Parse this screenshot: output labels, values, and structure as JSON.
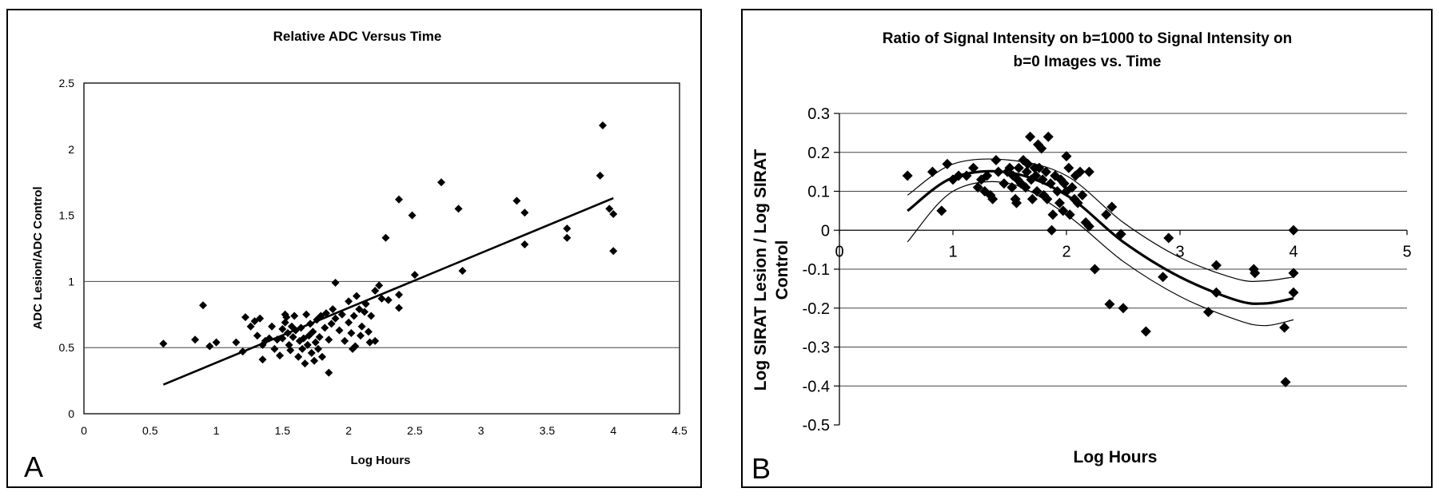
{
  "chart_data": [
    {
      "type": "scatter",
      "panel_label": "A",
      "title": "Relative ADC Versus Time",
      "xlabel": "Log Hours",
      "ylabel": "ADC Lesion/ADC Control",
      "xlim": [
        0,
        4.5
      ],
      "ylim": [
        0,
        2.5
      ],
      "xticks": [
        "0",
        "0.5",
        "1",
        "1.5",
        "2",
        "2.5",
        "3",
        "3.5",
        "4",
        "4.5"
      ],
      "yticks": [
        "0",
        "0.5",
        "1",
        "1.5",
        "2",
        "2.5"
      ],
      "grid": "horizontal lines at 0.5 and 1",
      "legend": "none",
      "trend_line": {
        "x": [
          0.6,
          4.0
        ],
        "y": [
          0.22,
          1.63
        ]
      },
      "points": [
        [
          0.6,
          0.53
        ],
        [
          0.84,
          0.56
        ],
        [
          0.9,
          0.82
        ],
        [
          0.95,
          0.51
        ],
        [
          1.0,
          0.54
        ],
        [
          1.15,
          0.54
        ],
        [
          1.2,
          0.47
        ],
        [
          1.22,
          0.73
        ],
        [
          1.26,
          0.66
        ],
        [
          1.29,
          0.7
        ],
        [
          1.31,
          0.59
        ],
        [
          1.33,
          0.72
        ],
        [
          1.35,
          0.52
        ],
        [
          1.35,
          0.41
        ],
        [
          1.37,
          0.55
        ],
        [
          1.4,
          0.57
        ],
        [
          1.42,
          0.66
        ],
        [
          1.44,
          0.49
        ],
        [
          1.46,
          0.56
        ],
        [
          1.48,
          0.44
        ],
        [
          1.5,
          0.57
        ],
        [
          1.5,
          0.64
        ],
        [
          1.52,
          0.69
        ],
        [
          1.52,
          0.75
        ],
        [
          1.53,
          0.73
        ],
        [
          1.54,
          0.61
        ],
        [
          1.55,
          0.52
        ],
        [
          1.56,
          0.48
        ],
        [
          1.57,
          0.66
        ],
        [
          1.58,
          0.58
        ],
        [
          1.59,
          0.74
        ],
        [
          1.6,
          0.63
        ],
        [
          1.62,
          0.43
        ],
        [
          1.63,
          0.55
        ],
        [
          1.64,
          0.65
        ],
        [
          1.65,
          0.49
        ],
        [
          1.66,
          0.57
        ],
        [
          1.67,
          0.38
        ],
        [
          1.68,
          0.75
        ],
        [
          1.69,
          0.52
        ],
        [
          1.7,
          0.59
        ],
        [
          1.71,
          0.68
        ],
        [
          1.72,
          0.46
        ],
        [
          1.73,
          0.62
        ],
        [
          1.74,
          0.4
        ],
        [
          1.75,
          0.54
        ],
        [
          1.76,
          0.71
        ],
        [
          1.77,
          0.49
        ],
        [
          1.78,
          0.58
        ],
        [
          1.79,
          0.74
        ],
        [
          1.8,
          0.43
        ],
        [
          1.82,
          0.65
        ],
        [
          1.83,
          0.76
        ],
        [
          1.85,
          0.56
        ],
        [
          1.85,
          0.31
        ],
        [
          1.87,
          0.68
        ],
        [
          1.88,
          0.79
        ],
        [
          1.9,
          0.99
        ],
        [
          1.9,
          0.72
        ],
        [
          1.93,
          0.63
        ],
        [
          1.95,
          0.75
        ],
        [
          1.97,
          0.55
        ],
        [
          2.0,
          0.85
        ],
        [
          2.0,
          0.69
        ],
        [
          2.02,
          0.61
        ],
        [
          2.03,
          0.49
        ],
        [
          2.04,
          0.74
        ],
        [
          2.05,
          0.51
        ],
        [
          2.06,
          0.89
        ],
        [
          2.08,
          0.79
        ],
        [
          2.09,
          0.59
        ],
        [
          2.1,
          0.66
        ],
        [
          2.12,
          0.77
        ],
        [
          2.13,
          0.83
        ],
        [
          2.15,
          0.62
        ],
        [
          2.16,
          0.54
        ],
        [
          2.17,
          0.74
        ],
        [
          2.2,
          0.93
        ],
        [
          2.2,
          0.55
        ],
        [
          2.23,
          0.97
        ],
        [
          2.25,
          0.87
        ],
        [
          2.28,
          1.33
        ],
        [
          2.3,
          0.86
        ],
        [
          2.38,
          0.9
        ],
        [
          2.38,
          0.8
        ],
        [
          2.38,
          1.62
        ],
        [
          2.48,
          1.5
        ],
        [
          2.5,
          1.05
        ],
        [
          2.7,
          1.75
        ],
        [
          2.83,
          1.55
        ],
        [
          2.86,
          1.08
        ],
        [
          3.27,
          1.61
        ],
        [
          3.33,
          1.52
        ],
        [
          3.33,
          1.28
        ],
        [
          3.65,
          1.4
        ],
        [
          3.65,
          1.33
        ],
        [
          3.9,
          1.8
        ],
        [
          3.92,
          2.18
        ],
        [
          3.97,
          1.55
        ],
        [
          4.0,
          1.51
        ],
        [
          4.0,
          1.23
        ]
      ]
    },
    {
      "type": "scatter",
      "panel_label": "B",
      "title": "Ratio of Signal Intensity on b=1000 to Signal Intensity on",
      "title_line2": "b=0 Images vs. Time",
      "xlabel": "Log Hours",
      "ylabel": "Log SIRAT Lesion / Log SIRAT",
      "ylabel_line2": "Control",
      "xlim": [
        0,
        5
      ],
      "ylim": [
        -0.5,
        0.3
      ],
      "xticks": [
        "0",
        "1",
        "2",
        "3",
        "4",
        "5"
      ],
      "yticks": [
        "0.3",
        "0.2",
        "0.1",
        "0",
        "-0.1",
        "-0.2",
        "-0.3",
        "-0.4",
        "-0.5"
      ],
      "grid": "horizontal lines at every 0.1",
      "legend": "none",
      "fit_curve": {
        "x": [
          0.6,
          1.0,
          1.5,
          2.0,
          2.5,
          3.0,
          3.5,
          3.75,
          4.0
        ],
        "y": [
          0.05,
          0.135,
          0.148,
          0.09,
          -0.03,
          -0.12,
          -0.18,
          -0.188,
          -0.175
        ]
      },
      "upper_band": {
        "x": [
          0.6,
          1.0,
          1.5,
          2.0,
          2.5,
          3.0,
          3.5,
          3.75,
          4.0
        ],
        "y": [
          0.09,
          0.17,
          0.18,
          0.14,
          0.02,
          -0.07,
          -0.125,
          -0.13,
          -0.12
        ]
      },
      "lower_band": {
        "x": [
          0.6,
          1.0,
          1.5,
          2.0,
          2.5,
          3.0,
          3.5,
          3.75,
          4.0
        ],
        "y": [
          -0.03,
          0.1,
          0.12,
          0.04,
          -0.08,
          -0.17,
          -0.23,
          -0.245,
          -0.23
        ]
      },
      "points": [
        [
          0.6,
          0.14
        ],
        [
          0.82,
          0.15
        ],
        [
          0.9,
          0.05
        ],
        [
          0.95,
          0.17
        ],
        [
          1.0,
          0.13
        ],
        [
          1.05,
          0.14
        ],
        [
          1.12,
          0.14
        ],
        [
          1.18,
          0.16
        ],
        [
          1.22,
          0.11
        ],
        [
          1.25,
          0.13
        ],
        [
          1.28,
          0.1
        ],
        [
          1.3,
          0.14
        ],
        [
          1.33,
          0.09
        ],
        [
          1.35,
          0.08
        ],
        [
          1.38,
          0.18
        ],
        [
          1.4,
          0.15
        ],
        [
          1.45,
          0.12
        ],
        [
          1.48,
          0.15
        ],
        [
          1.5,
          0.16
        ],
        [
          1.52,
          0.11
        ],
        [
          1.53,
          0.14
        ],
        [
          1.55,
          0.08
        ],
        [
          1.56,
          0.07
        ],
        [
          1.57,
          0.13
        ],
        [
          1.58,
          0.16
        ],
        [
          1.6,
          0.12
        ],
        [
          1.62,
          0.18
        ],
        [
          1.64,
          0.11
        ],
        [
          1.65,
          0.15
        ],
        [
          1.66,
          0.17
        ],
        [
          1.68,
          0.24
        ],
        [
          1.69,
          0.13
        ],
        [
          1.7,
          0.08
        ],
        [
          1.72,
          0.16
        ],
        [
          1.73,
          0.14
        ],
        [
          1.74,
          0.1
        ],
        [
          1.75,
          0.22
        ],
        [
          1.76,
          0.16
        ],
        [
          1.78,
          0.21
        ],
        [
          1.79,
          0.13
        ],
        [
          1.8,
          0.09
        ],
        [
          1.82,
          0.15
        ],
        [
          1.83,
          0.08
        ],
        [
          1.84,
          0.24
        ],
        [
          1.86,
          0.12
        ],
        [
          1.87,
          0.0
        ],
        [
          1.88,
          0.04
        ],
        [
          1.9,
          0.14
        ],
        [
          1.92,
          0.1
        ],
        [
          1.94,
          0.07
        ],
        [
          1.95,
          0.13
        ],
        [
          1.97,
          0.05
        ],
        [
          1.98,
          0.12
        ],
        [
          2.0,
          0.19
        ],
        [
          2.0,
          0.1
        ],
        [
          2.02,
          0.16
        ],
        [
          2.03,
          0.04
        ],
        [
          2.05,
          0.11
        ],
        [
          2.07,
          0.08
        ],
        [
          2.08,
          0.14
        ],
        [
          2.1,
          0.07
        ],
        [
          2.12,
          0.15
        ],
        [
          2.14,
          0.09
        ],
        [
          2.17,
          0.02
        ],
        [
          2.2,
          0.15
        ],
        [
          2.2,
          0.01
        ],
        [
          2.25,
          -0.1
        ],
        [
          2.35,
          0.04
        ],
        [
          2.38,
          -0.19
        ],
        [
          2.4,
          0.06
        ],
        [
          2.48,
          -0.01
        ],
        [
          2.5,
          -0.2
        ],
        [
          2.7,
          -0.26
        ],
        [
          2.85,
          -0.12
        ],
        [
          2.9,
          -0.02
        ],
        [
          3.25,
          -0.21
        ],
        [
          3.32,
          -0.09
        ],
        [
          3.32,
          -0.16
        ],
        [
          3.65,
          -0.1
        ],
        [
          3.66,
          -0.11
        ],
        [
          3.92,
          -0.25
        ],
        [
          3.93,
          -0.39
        ],
        [
          4.0,
          -0.16
        ],
        [
          4.0,
          -0.11
        ],
        [
          4.0,
          0.0
        ]
      ]
    }
  ]
}
